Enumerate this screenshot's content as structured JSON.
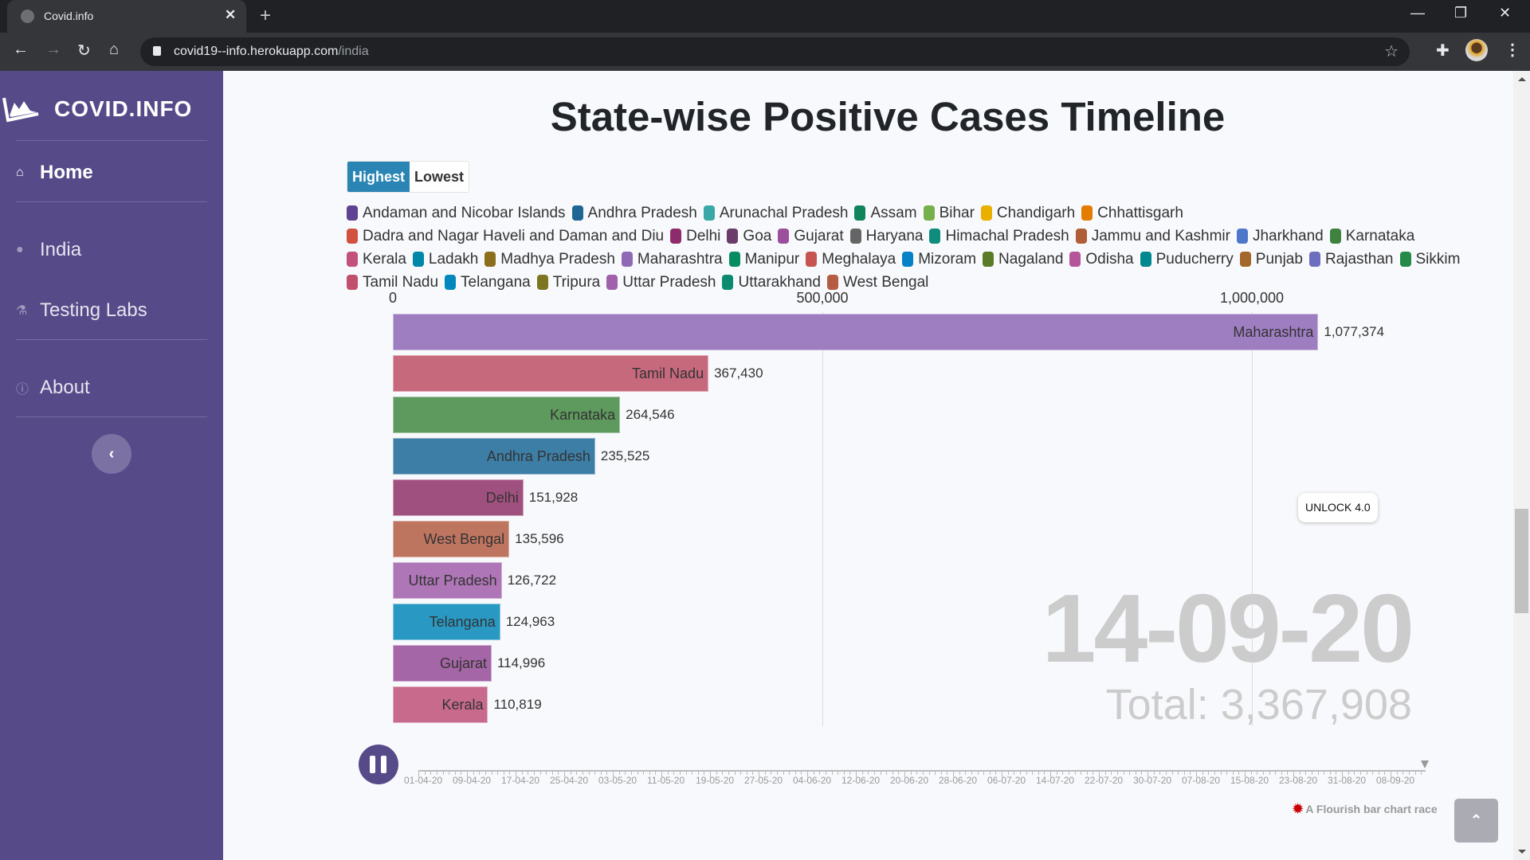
{
  "browser": {
    "tab_title": "Covid.info",
    "url_host": "covid19--info.herokuapp.com",
    "url_path": "/india"
  },
  "sidebar": {
    "brand": "COVID.INFO",
    "items": [
      {
        "label": "Home",
        "icon": "home-icon",
        "active": true
      },
      {
        "label": "India",
        "icon": "map-marker-icon",
        "active": false
      },
      {
        "label": "Testing Labs",
        "icon": "flask-icon",
        "active": false
      },
      {
        "label": "About",
        "icon": "info-icon",
        "active": false
      }
    ],
    "collapse_icon": "chevron-left-icon"
  },
  "main": {
    "title": "State-wise Positive Cases Timeline",
    "sort_buttons": {
      "highest": "Highest",
      "lowest": "Lowest",
      "selected": "Highest"
    },
    "unlock_tooltip": "UNLOCK 4.0",
    "credit": "A Flourish bar chart race",
    "scroll_top_icon": "chevron-up-icon"
  },
  "chart_data": {
    "type": "bar",
    "orientation": "horizontal",
    "title": "State-wise Positive Cases Timeline",
    "current_date": "14-09-20",
    "total_label": "Total:",
    "total": "3,367,908",
    "xlim": [
      0,
      1000000
    ],
    "x_ticks": [
      0,
      500000,
      1000000
    ],
    "x_tick_labels": [
      "0",
      "500,000",
      "1,000,000"
    ],
    "grid": true,
    "categories": [
      "Maharashtra",
      "Tamil Nadu",
      "Karnataka",
      "Andhra Pradesh",
      "Delhi",
      "West Bengal",
      "Uttar Pradesh",
      "Telangana",
      "Gujarat",
      "Kerala"
    ],
    "values": [
      1077374,
      367430,
      264546,
      235525,
      151928,
      135596,
      126722,
      124963,
      114996,
      110819
    ],
    "value_labels": [
      "1,077,374",
      "367,430",
      "264,546",
      "235,525",
      "151,928",
      "135,596",
      "126,722",
      "124,963",
      "114,996",
      "110,819"
    ],
    "bar_colors": [
      "#9e7dc1",
      "#c7697d",
      "#5e9a5e",
      "#3d7ea6",
      "#a0507e",
      "#be7560",
      "#ae76b6",
      "#2999c4",
      "#a466a6",
      "#c76a8c"
    ],
    "legend": [
      {
        "name": "Andaman and Nicobar Islands",
        "color": "#5e4393"
      },
      {
        "name": "Andhra Pradesh",
        "color": "#1e6794"
      },
      {
        "name": "Arunachal Pradesh",
        "color": "#3aa8a6"
      },
      {
        "name": "Assam",
        "color": "#10845a"
      },
      {
        "name": "Bihar",
        "color": "#75b04a"
      },
      {
        "name": "Chandigarh",
        "color": "#eab000"
      },
      {
        "name": "Chhattisgarh",
        "color": "#e37c00"
      },
      {
        "name": "Dadra and Nagar Haveli and Daman and Diu",
        "color": "#d1533f"
      },
      {
        "name": "Delhi",
        "color": "#8e2b6d"
      },
      {
        "name": "Goa",
        "color": "#6b3b6b"
      },
      {
        "name": "Gujarat",
        "color": "#9b4f9c"
      },
      {
        "name": "Haryana",
        "color": "#656565"
      },
      {
        "name": "Himachal Pradesh",
        "color": "#0e8c7e"
      },
      {
        "name": "Jammu and Kashmir",
        "color": "#b05e38"
      },
      {
        "name": "Jharkhand",
        "color": "#4f78cb"
      },
      {
        "name": "Karnataka",
        "color": "#3f8240"
      },
      {
        "name": "Kerala",
        "color": "#c2527c"
      },
      {
        "name": "Ladakh",
        "color": "#0086a8"
      },
      {
        "name": "Madhya Pradesh",
        "color": "#8b6f1c"
      },
      {
        "name": "Maharashtra",
        "color": "#9069b6"
      },
      {
        "name": "Manipur",
        "color": "#078c62"
      },
      {
        "name": "Meghalaya",
        "color": "#c65552"
      },
      {
        "name": "Mizoram",
        "color": "#0681c8"
      },
      {
        "name": "Nagaland",
        "color": "#5a7c28"
      },
      {
        "name": "Odisha",
        "color": "#b5559a"
      },
      {
        "name": "Puducherry",
        "color": "#00888e"
      },
      {
        "name": "Punjab",
        "color": "#a2672b"
      },
      {
        "name": "Rajasthan",
        "color": "#6d6fbe"
      },
      {
        "name": "Sikkim",
        "color": "#258a48"
      },
      {
        "name": "Tamil Nadu",
        "color": "#c0506c"
      },
      {
        "name": "Telangana",
        "color": "#0088bd"
      },
      {
        "name": "Tripura",
        "color": "#7d7520"
      },
      {
        "name": "Uttar Pradesh",
        "color": "#a060ab"
      },
      {
        "name": "Uttarakhand",
        "color": "#0c8a70"
      },
      {
        "name": "West Bengal",
        "color": "#b45d42"
      }
    ],
    "timeline": {
      "labels": [
        "01-04-20",
        "09-04-20",
        "17-04-20",
        "25-04-20",
        "03-05-20",
        "11-05-20",
        "19-05-20",
        "27-05-20",
        "04-06-20",
        "12-06-20",
        "20-06-20",
        "28-06-20",
        "06-07-20",
        "14-07-20",
        "22-07-20",
        "30-07-20",
        "07-08-20",
        "15-08-20",
        "23-08-20",
        "31-08-20",
        "08-09-20"
      ],
      "playing": true,
      "progress": 1.0
    }
  }
}
